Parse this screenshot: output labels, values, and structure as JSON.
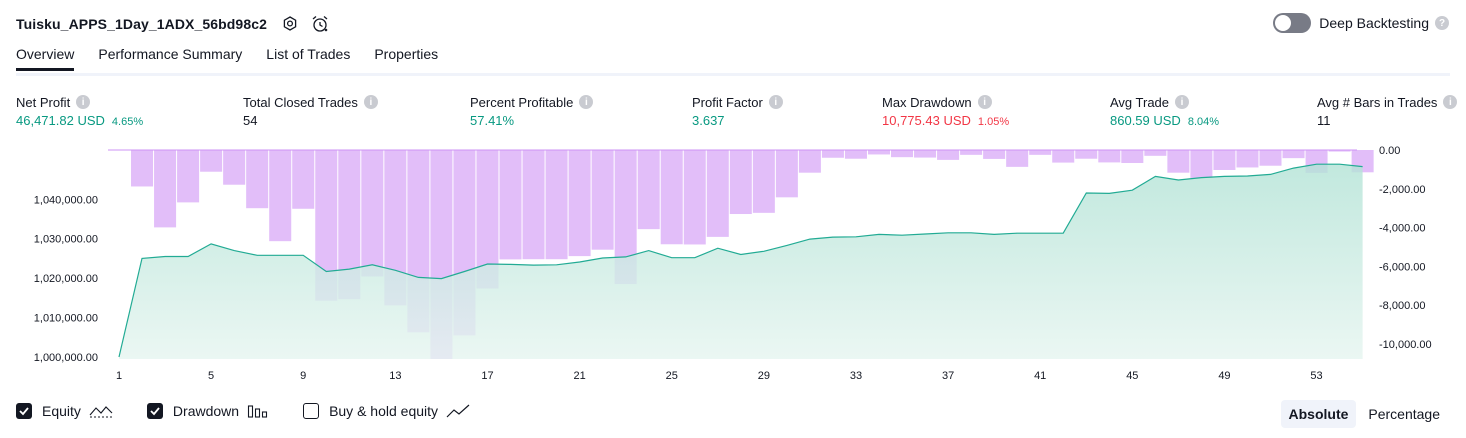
{
  "header": {
    "strategy_name": "Tuisku_APPS_1Day_1ADX_56bd98c2",
    "settings_icon": "settings-icon",
    "alert_icon": "alarm-clock-icon",
    "deep_backtesting_label": "Deep Backtesting",
    "deep_backtesting_enabled": false
  },
  "tabs": [
    {
      "label": "Overview",
      "active": true
    },
    {
      "label": "Performance Summary",
      "active": false
    },
    {
      "label": "List of Trades",
      "active": false
    },
    {
      "label": "Properties",
      "active": false
    }
  ],
  "metrics": [
    {
      "label": "Net Profit",
      "value": "46,471.82 USD",
      "pct": "4.65%",
      "color": "green"
    },
    {
      "label": "Total Closed Trades",
      "value": "54",
      "pct": "",
      "color": "dark"
    },
    {
      "label": "Percent Profitable",
      "value": "57.41%",
      "pct": "",
      "color": "green"
    },
    {
      "label": "Profit Factor",
      "value": "3.637",
      "pct": "",
      "color": "green"
    },
    {
      "label": "Max Drawdown",
      "value": "10,775.43 USD",
      "pct": "1.05%",
      "color": "red"
    },
    {
      "label": "Avg Trade",
      "value": "860.59 USD",
      "pct": "8.04%",
      "color": "green"
    },
    {
      "label": "Avg # Bars in Trades",
      "value": "11",
      "pct": "",
      "color": "dark"
    }
  ],
  "chart_data": {
    "type": "line+bar",
    "x_ticks": [
      1,
      5,
      9,
      13,
      17,
      21,
      25,
      29,
      33,
      37,
      41,
      45,
      49,
      53
    ],
    "left_axis": {
      "ticks": [
        1000000,
        1010000,
        1020000,
        1030000,
        1040000
      ],
      "tick_labels": [
        "1,000,000.00",
        "1,010,000.00",
        "1,020,000.00",
        "1,030,000.00",
        "1,040,000.00"
      ],
      "ylim": [
        999500,
        1052500
      ]
    },
    "right_axis": {
      "ticks": [
        0,
        -2000,
        -4000,
        -6000,
        -8000,
        -10000
      ],
      "tick_labels": [
        "0.00",
        "-2,000.00",
        "-4,000.00",
        "-6,000.00",
        "-8,000.00",
        "-10,000.00"
      ],
      "ylim": [
        -10775,
        0
      ]
    },
    "series": [
      {
        "name": "Equity",
        "kind": "area",
        "color": "#22ab94",
        "x": [
          1,
          2,
          3,
          4,
          5,
          6,
          7,
          8,
          9,
          10,
          11,
          12,
          13,
          14,
          15,
          16,
          17,
          18,
          19,
          20,
          21,
          22,
          23,
          24,
          25,
          26,
          27,
          28,
          29,
          30,
          31,
          32,
          33,
          34,
          35,
          36,
          37,
          38,
          39,
          40,
          41,
          42,
          43,
          44,
          45,
          46,
          47,
          48,
          49,
          50,
          51,
          52,
          53,
          54,
          55
        ],
        "values": [
          1000000,
          1025000,
          1025500,
          1025500,
          1028700,
          1027000,
          1025800,
          1025800,
          1025800,
          1021700,
          1022300,
          1023400,
          1022000,
          1020200,
          1019900,
          1021700,
          1023600,
          1023500,
          1023300,
          1023400,
          1024100,
          1025100,
          1025400,
          1027000,
          1025200,
          1025200,
          1027600,
          1026000,
          1026800,
          1028300,
          1029900,
          1030400,
          1030500,
          1031100,
          1030900,
          1031200,
          1031500,
          1031500,
          1031100,
          1031400,
          1031400,
          1031400,
          1041600,
          1041500,
          1042300,
          1045800,
          1044900,
          1045500,
          1045800,
          1045900,
          1046300,
          1047900,
          1048900,
          1048900,
          1048300
        ]
      },
      {
        "name": "Drawdown",
        "kind": "bar",
        "color": "#ce93f5",
        "values": [
          0,
          -1880,
          -3990,
          -2700,
          -1120,
          -1790,
          -3000,
          -4700,
          -3030,
          -7770,
          -7690,
          -6520,
          -8010,
          -9400,
          -10775,
          -9560,
          -7140,
          -5640,
          -5630,
          -5630,
          -5470,
          -5140,
          -6910,
          -4080,
          -4860,
          -4870,
          -4480,
          -3300,
          -3240,
          -2440,
          -1170,
          -400,
          -450,
          -230,
          -370,
          -390,
          -510,
          -250,
          -460,
          -870,
          -250,
          -650,
          -450,
          -640,
          -670,
          -300,
          -1170,
          -1440,
          -1030,
          -900,
          -810,
          -420,
          -1180,
          -80,
          -1150
        ]
      }
    ],
    "legend": [
      {
        "label": "Equity",
        "checked": true,
        "icon": "equity-line-icon"
      },
      {
        "label": "Drawdown",
        "checked": true,
        "icon": "drawdown-bars-icon"
      },
      {
        "label": "Buy & hold equity",
        "checked": false,
        "icon": "buy-hold-line-icon"
      }
    ],
    "scale_buttons": [
      {
        "label": "Absolute",
        "active": true
      },
      {
        "label": "Percentage",
        "active": false
      }
    ]
  }
}
